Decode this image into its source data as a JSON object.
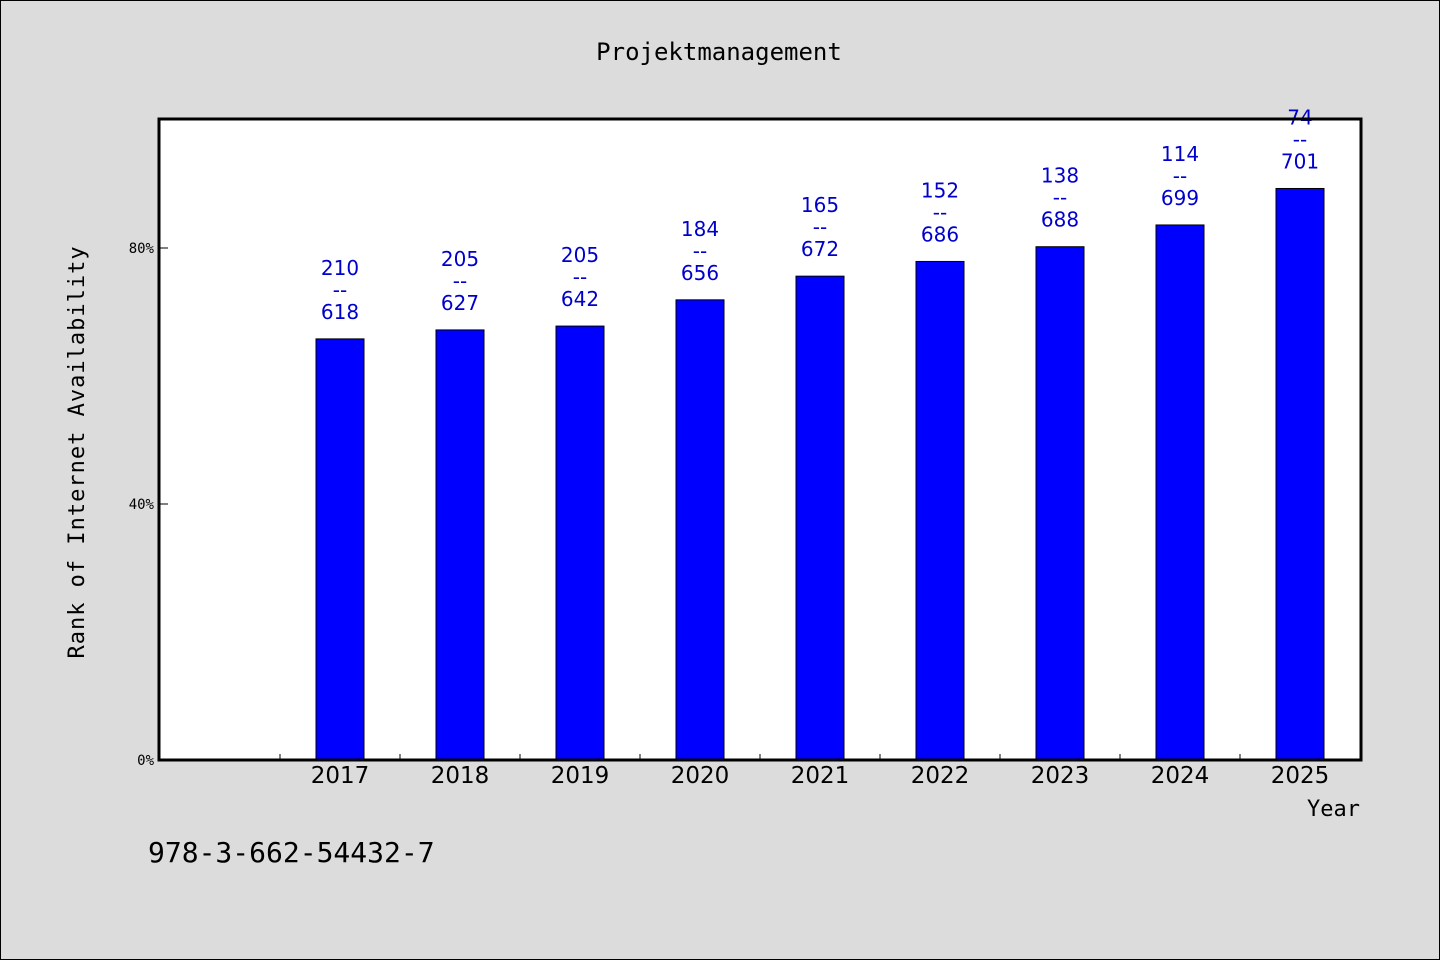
{
  "chart_data": {
    "type": "bar",
    "title": "Projektmanagement",
    "xlabel": "Year",
    "ylabel": "Rank of Internet Availability",
    "categories": [
      "2017",
      "2018",
      "2019",
      "2020",
      "2021",
      "2022",
      "2023",
      "2024",
      "2025"
    ],
    "values": [
      65.8,
      67.2,
      67.8,
      71.9,
      75.6,
      77.9,
      80.2,
      83.6,
      89.3
    ],
    "value_unit": "%",
    "data_labels": [
      {
        "top": "210",
        "sep": "--",
        "bottom": "618"
      },
      {
        "top": "205",
        "sep": "--",
        "bottom": "627"
      },
      {
        "top": "205",
        "sep": "--",
        "bottom": "642"
      },
      {
        "top": "184",
        "sep": "--",
        "bottom": "656"
      },
      {
        "top": "165",
        "sep": "--",
        "bottom": "672"
      },
      {
        "top": "152",
        "sep": "--",
        "bottom": "686"
      },
      {
        "top": "138",
        "sep": "--",
        "bottom": "688"
      },
      {
        "top": "114",
        "sep": "--",
        "bottom": "699"
      },
      {
        "top": "74",
        "sep": "--",
        "bottom": "701"
      }
    ],
    "yticks": [
      {
        "value": 0,
        "label": "0%"
      },
      {
        "value": 40,
        "label": "40%"
      },
      {
        "value": 80,
        "label": "80%"
      }
    ],
    "ylim": [
      0,
      100
    ],
    "x_slots": 10,
    "first_category_slot": 1,
    "grid": false,
    "colors": {
      "bar": "#0000ff",
      "bar_edge": "#000000",
      "data_label": "#0000cc",
      "plot_bg": "#ffffff",
      "page_bg": "#dcdcdc"
    }
  },
  "footer": {
    "text": "978-3-662-54432-7"
  }
}
